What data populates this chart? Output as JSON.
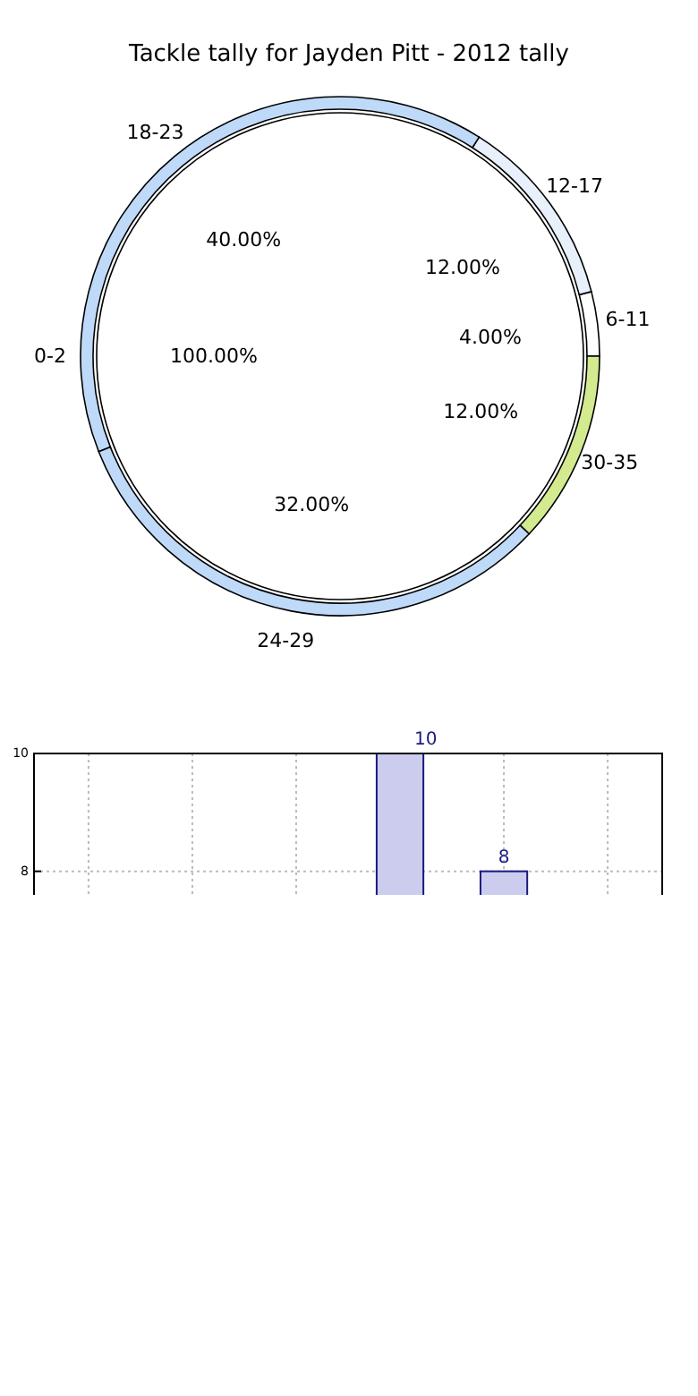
{
  "chart_data": [
    {
      "type": "pie",
      "title": "Tackle tally for Jayden Pitt - 2012 tally",
      "categories": [
        "0-2"
      ],
      "values": [
        100
      ],
      "colors": [
        "#ffffff"
      ],
      "value_labels": [
        "100.00%"
      ]
    },
    {
      "type": "donut",
      "categories": [
        "6-11",
        "12-17",
        "18-23",
        "24-29",
        "30-35"
      ],
      "values": [
        4,
        12,
        40,
        32,
        12
      ],
      "colors": [
        "#ffffff",
        "#e8f0fc",
        "#bfd9f9",
        "#bfd9f9",
        "#d3ea8f"
      ],
      "value_labels": [
        "4.00%",
        "12.00%",
        "40.00%",
        "32.00%",
        "12.00%"
      ]
    },
    {
      "type": "bar",
      "categories": [
        null,
        null,
        null,
        null,
        null,
        null
      ],
      "values": [
        null,
        null,
        null,
        10,
        8,
        null
      ],
      "color": "#ccccee",
      "ylim": [
        7.6,
        10
      ],
      "yticks": [
        8,
        10
      ],
      "grid": true,
      "tick_labels": "y",
      "data_labels": true
    }
  ]
}
